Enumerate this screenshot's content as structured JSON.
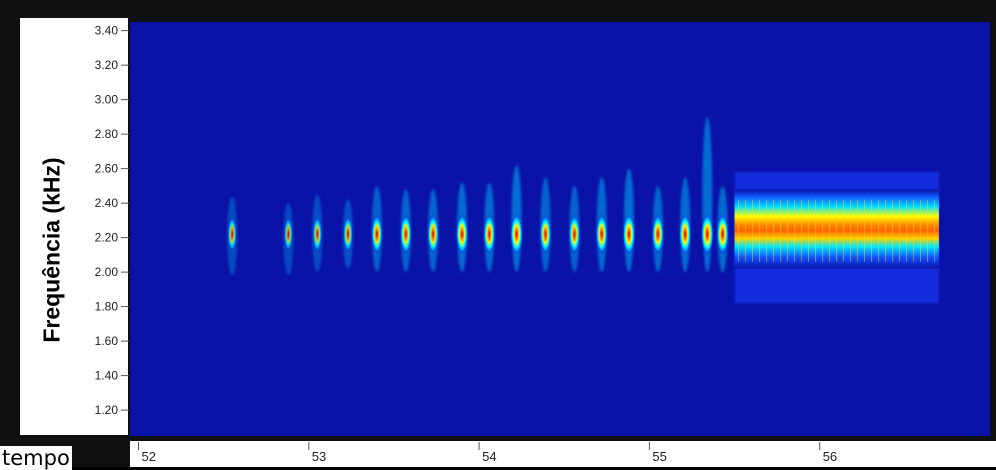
{
  "chart_data": {
    "type": "heatmap",
    "title": "",
    "xlabel": "tempo",
    "ylabel": "Frequência (kHz)",
    "xlim": [
      51.95,
      57.0
    ],
    "ylim": [
      1.05,
      3.45
    ],
    "x_ticks": [
      "52",
      "53",
      "54",
      "55",
      "56"
    ],
    "x_tick_values": [
      52,
      53,
      54,
      55,
      56
    ],
    "y_ticks": [
      "1.20",
      "1.40",
      "1.60",
      "1.80",
      "2.00",
      "2.20",
      "2.40",
      "2.60",
      "2.80",
      "3.00",
      "3.20",
      "3.40"
    ],
    "y_tick_values": [
      1.2,
      1.4,
      1.6,
      1.8,
      2.0,
      2.2,
      2.4,
      2.6,
      2.8,
      3.0,
      3.2,
      3.4
    ],
    "colormap": [
      "#00008b",
      "#0000ff",
      "#00a0ff",
      "#00ffff",
      "#ffff00",
      "#ff8000",
      "#cc0000"
    ],
    "background_color": "#0a12a8",
    "pulses": [
      {
        "t": 52.55,
        "f_low": 1.98,
        "f_high": 2.44,
        "peak": 0.45
      },
      {
        "t": 52.88,
        "f_low": 1.98,
        "f_high": 2.4,
        "peak": 0.4
      },
      {
        "t": 53.05,
        "f_low": 2.0,
        "f_high": 2.45,
        "peak": 0.5
      },
      {
        "t": 53.23,
        "f_low": 2.02,
        "f_high": 2.42,
        "peak": 0.55
      },
      {
        "t": 53.4,
        "f_low": 2.0,
        "f_high": 2.5,
        "peak": 0.8
      },
      {
        "t": 53.57,
        "f_low": 2.0,
        "f_high": 2.48,
        "peak": 0.85
      },
      {
        "t": 53.73,
        "f_low": 2.0,
        "f_high": 2.48,
        "peak": 0.85
      },
      {
        "t": 53.9,
        "f_low": 2.0,
        "f_high": 2.52,
        "peak": 0.95
      },
      {
        "t": 54.06,
        "f_low": 2.0,
        "f_high": 2.52,
        "peak": 0.9
      },
      {
        "t": 54.22,
        "f_low": 2.0,
        "f_high": 2.62,
        "peak": 1.0
      },
      {
        "t": 54.39,
        "f_low": 2.0,
        "f_high": 2.55,
        "peak": 0.85
      },
      {
        "t": 54.56,
        "f_low": 2.0,
        "f_high": 2.5,
        "peak": 0.85
      },
      {
        "t": 54.72,
        "f_low": 2.0,
        "f_high": 2.55,
        "peak": 0.9
      },
      {
        "t": 54.88,
        "f_low": 2.0,
        "f_high": 2.6,
        "peak": 1.0
      },
      {
        "t": 55.05,
        "f_low": 2.0,
        "f_high": 2.5,
        "peak": 0.9
      },
      {
        "t": 55.21,
        "f_low": 2.0,
        "f_high": 2.55,
        "peak": 0.95
      },
      {
        "t": 55.34,
        "f_low": 2.0,
        "f_high": 2.9,
        "peak": 1.0
      },
      {
        "t": 55.43,
        "f_low": 2.0,
        "f_high": 2.5,
        "peak": 0.95
      }
    ],
    "continuous_segment": {
      "t_start": 55.5,
      "t_end": 56.7,
      "f_low": 1.82,
      "f_high": 2.58,
      "core_low": 2.1,
      "core_high": 2.4,
      "peak": 1.0
    }
  }
}
